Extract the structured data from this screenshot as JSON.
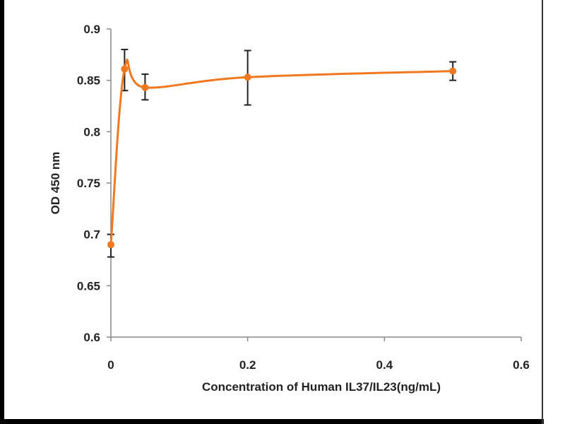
{
  "chart_data": {
    "type": "line",
    "title": "",
    "xlabel": "Concentration of Human IL37/IL23(ng/mL)",
    "ylabel": "OD 450 nm",
    "xlim": [
      0,
      0.6
    ],
    "ylim": [
      0.6,
      0.9
    ],
    "xticks": [
      "0",
      "0.2",
      "0.4",
      "0.6"
    ],
    "yticks": [
      "0.6",
      "0.65",
      "0.7",
      "0.75",
      "0.8",
      "0.85",
      "0.9"
    ],
    "grid": false,
    "smooth": true,
    "color": "#f07820",
    "series": [
      {
        "x": [
          0,
          0.02,
          0.05,
          0.2,
          0.5
        ],
        "y": [
          0.69,
          0.861,
          0.843,
          0.853,
          0.859
        ],
        "err_low": [
          0.678,
          0.84,
          0.831,
          0.826,
          0.85
        ],
        "err_high": [
          0.7,
          0.88,
          0.856,
          0.879,
          0.868
        ]
      }
    ]
  }
}
